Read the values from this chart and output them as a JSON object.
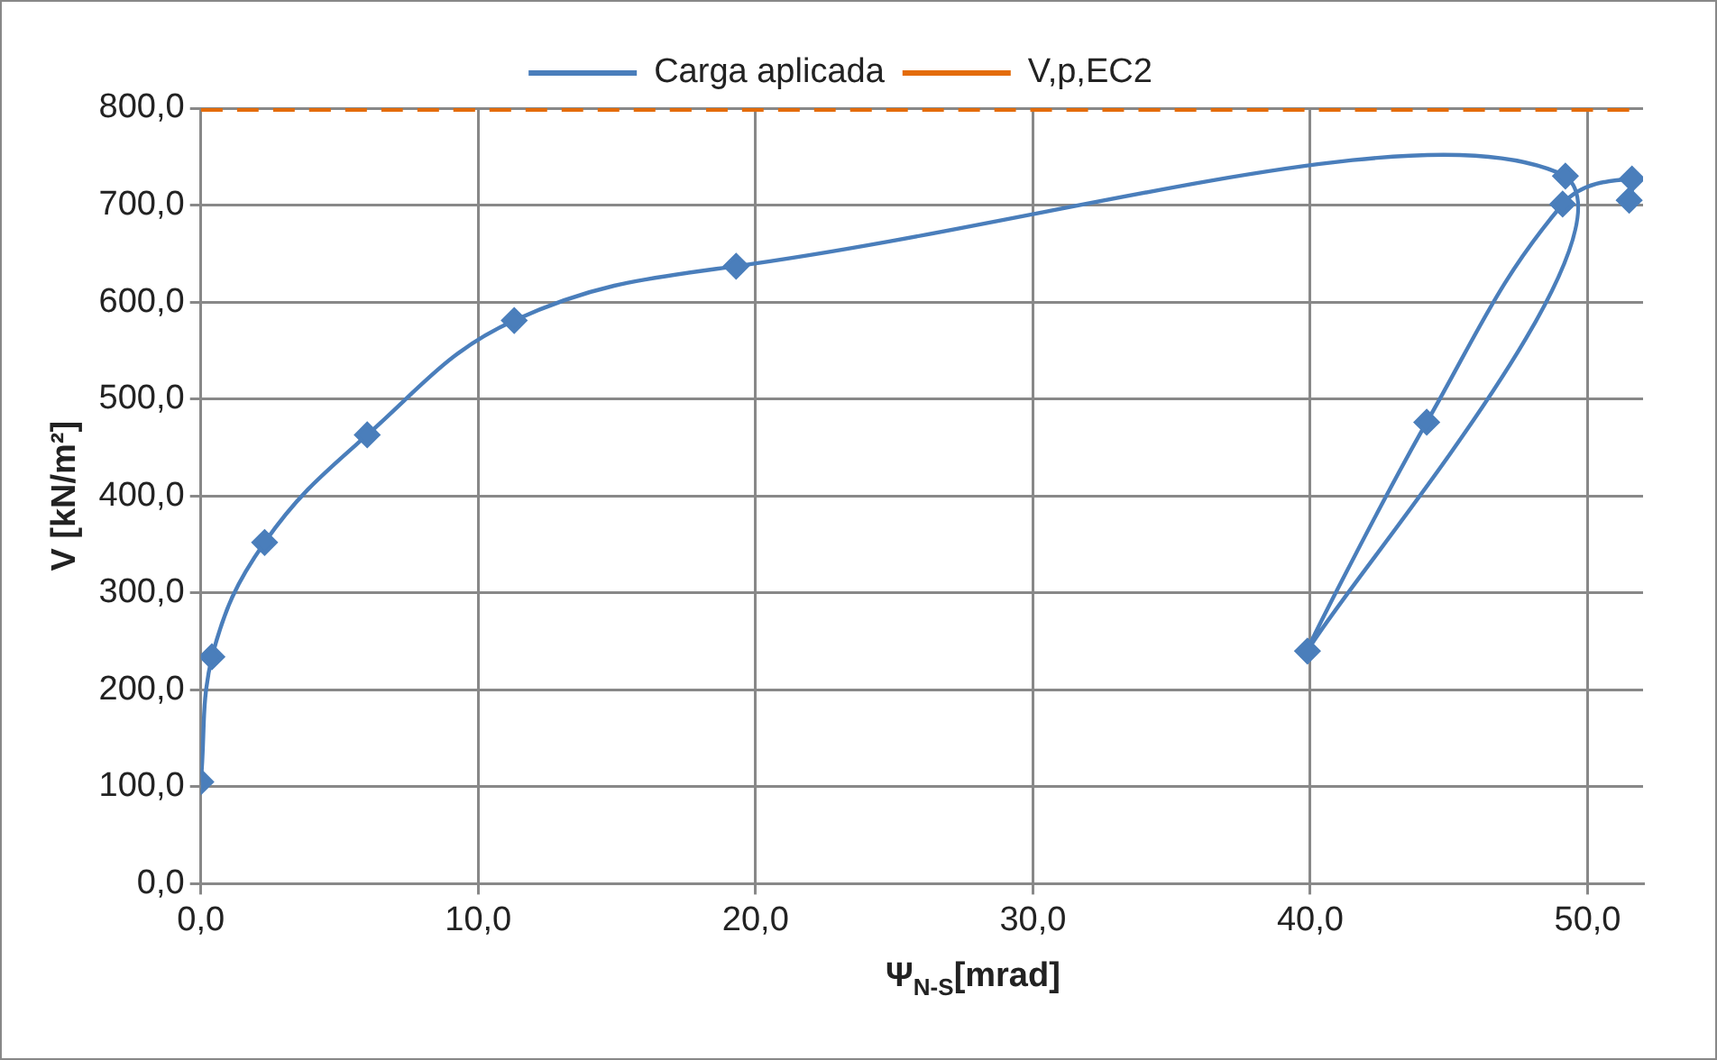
{
  "chart_data": {
    "type": "line",
    "xlabel": "Ψ$_{N-S}$[mrad]",
    "ylabel": "V [kN/m²]",
    "xlim": [
      0,
      52
    ],
    "ylim": [
      0,
      800
    ],
    "xticks": [
      {
        "value": 0,
        "label": "0,0"
      },
      {
        "value": 10,
        "label": "10,0"
      },
      {
        "value": 20,
        "label": "20,0"
      },
      {
        "value": 30,
        "label": "30,0"
      },
      {
        "value": 40,
        "label": "40,0"
      },
      {
        "value": 50,
        "label": "50,0"
      }
    ],
    "yticks": [
      {
        "value": 0,
        "label": "0,0"
      },
      {
        "value": 100,
        "label": "100,0"
      },
      {
        "value": 200,
        "label": "200,0"
      },
      {
        "value": 300,
        "label": "300,0"
      },
      {
        "value": 400,
        "label": "400,0"
      },
      {
        "value": 500,
        "label": "500,0"
      },
      {
        "value": 600,
        "label": "600,0"
      },
      {
        "value": 700,
        "label": "700,0"
      },
      {
        "value": 800,
        "label": "800,0"
      }
    ],
    "grid": true,
    "legend": "top",
    "series": [
      {
        "name": "Carga aplicada",
        "color": "#4a7ebb",
        "marker": "diamond",
        "line_style": "solid",
        "x": [
          0,
          0.4,
          2.3,
          6.0,
          11.3,
          19.3,
          49.2,
          39.9,
          44.2,
          49.1,
          51.6,
          51.5
        ],
        "values": [
          105,
          234,
          352,
          463,
          581,
          637,
          730,
          240,
          476,
          701,
          727,
          705
        ]
      },
      {
        "name": "V,p,EC2",
        "color": "#e46c0a",
        "marker": "none",
        "line_style": "dashed",
        "x": [
          0,
          51.6
        ],
        "values": [
          800,
          800
        ]
      }
    ]
  }
}
